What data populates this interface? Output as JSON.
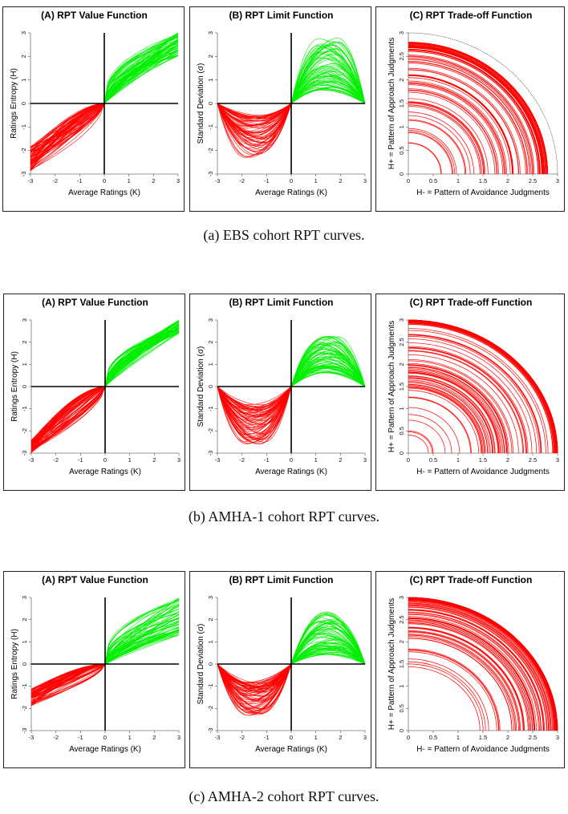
{
  "figures": [
    {
      "caption": "(a) EBS cohort RPT curves.",
      "panels": [
        {
          "title": "(A) RPT Value Function",
          "xlabel": "Average Ratings (K)",
          "ylabel": "Ratings Entropy (H)"
        },
        {
          "title": "(B) RPT Limit Function",
          "xlabel": "Average Ratings (K)",
          "ylabel": "Standard Deviation (σ)"
        },
        {
          "title": "(C) RPT Trade-off Function",
          "xlabel": "H- = Pattern of Avoidance Judgments",
          "ylabel": "H+ = Pattern of Approach Judgments"
        }
      ]
    },
    {
      "caption": "(b) AMHA-1 cohort RPT curves.",
      "panels": [
        {
          "title": "(A) RPT Value Function",
          "xlabel": "Average Ratings (K)",
          "ylabel": "Ratings Entropy (H)"
        },
        {
          "title": "(B) RPT Limit Function",
          "xlabel": "Average Ratings (K)",
          "ylabel": "Standard Deviation (σ)"
        },
        {
          "title": "(C) RPT Trade-off Function",
          "xlabel": "H- = Pattern of Avoidance Judgments",
          "ylabel": "H+ = Pattern of Approach Judgments"
        }
      ]
    },
    {
      "caption": "(c) AMHA-2 cohort RPT curves.",
      "panels": [
        {
          "title": "(A) RPT Value Function",
          "xlabel": "Average Ratings (K)",
          "ylabel": "Ratings Entropy (H)"
        },
        {
          "title": "(B) RPT Limit Function",
          "xlabel": "Average Ratings (K)",
          "ylabel": "Standard Deviation (σ)"
        },
        {
          "title": "(C) RPT Trade-off Function",
          "xlabel": "H- = Pattern of Avoidance Judgments",
          "ylabel": "H+ = Pattern of Approach Judgments"
        }
      ]
    }
  ],
  "chart_data": [
    {
      "type": "line",
      "cohort": "EBS",
      "panel": "value",
      "x_ticks": [
        "-3",
        "-2",
        "-1",
        "0",
        "1",
        "2",
        "3"
      ],
      "y_ticks": [
        "-3",
        "-2",
        "-1",
        "0",
        "1",
        "2",
        "3"
      ],
      "xlim": [
        -3,
        3
      ],
      "ylim": [
        -3,
        3
      ],
      "neg_color": "#ff0000",
      "pos_color": "#00ee00",
      "neg_curve_range": {
        "x": [
          -3,
          0
        ],
        "y_at_-3": [
          -2.9,
          -1.8
        ]
      },
      "pos_curve_range": {
        "x": [
          0,
          3
        ],
        "y_at_3": [
          2.0,
          3.0
        ]
      }
    },
    {
      "type": "line",
      "cohort": "EBS",
      "panel": "limit",
      "x_ticks": [
        "-3",
        "-2",
        "-1",
        "0",
        "1",
        "2",
        "3"
      ],
      "y_ticks": [
        "-3",
        "-2",
        "-1",
        "0",
        "1",
        "2",
        "3"
      ],
      "xlim": [
        -3,
        3
      ],
      "ylim": [
        -3,
        3
      ],
      "neg_color": "#ff0000",
      "pos_color": "#00ee00",
      "neg_trough_depth": [
        -0.5,
        -2.3
      ],
      "pos_peak_height": [
        0.5,
        2.8
      ]
    },
    {
      "type": "arc",
      "cohort": "EBS",
      "panel": "tradeoff",
      "x_ticks": [
        "0",
        "0.5",
        "1",
        "1.5",
        "2",
        "2.5",
        "3"
      ],
      "y_ticks": [
        "0",
        "0.5",
        "1",
        "1.5",
        "2",
        "2.5",
        "3"
      ],
      "xlim": [
        0,
        3
      ],
      "ylim": [
        0,
        3
      ],
      "color": "#ff0000",
      "radius_range": [
        0.5,
        2.8
      ],
      "outer_arc_radius": 3.0
    },
    {
      "type": "line",
      "cohort": "AMHA-1",
      "panel": "value",
      "x_ticks": [
        "-3",
        "-2",
        "-1",
        "0",
        "1",
        "2",
        "3"
      ],
      "y_ticks": [
        "-3",
        "-2",
        "-1",
        "0",
        "1",
        "2",
        "3"
      ],
      "xlim": [
        -3,
        3
      ],
      "ylim": [
        -3,
        3
      ],
      "neg_color": "#ff0000",
      "pos_color": "#00ee00",
      "neg_curve_range": {
        "x": [
          -3,
          0
        ],
        "y_at_-3": [
          -3.0,
          -2.4
        ]
      },
      "pos_curve_range": {
        "x": [
          0,
          3
        ],
        "y_at_3": [
          2.4,
          3.0
        ]
      }
    },
    {
      "type": "line",
      "cohort": "AMHA-1",
      "panel": "limit",
      "x_ticks": [
        "-3",
        "-2",
        "-1",
        "0",
        "1",
        "2",
        "3"
      ],
      "y_ticks": [
        "-3",
        "-2",
        "-1",
        "0",
        "1",
        "2",
        "3"
      ],
      "xlim": [
        -3,
        3
      ],
      "ylim": [
        -3,
        3
      ],
      "neg_color": "#ff0000",
      "pos_color": "#00ee00",
      "neg_trough_depth": [
        -0.8,
        -2.6
      ],
      "pos_peak_height": [
        0.6,
        2.3
      ]
    },
    {
      "type": "arc",
      "cohort": "AMHA-1",
      "panel": "tradeoff",
      "x_ticks": [
        "0",
        "0.5",
        "1",
        "1.5",
        "2",
        "2.5",
        "3"
      ],
      "y_ticks": [
        "0",
        "0.5",
        "1",
        "1.5",
        "2",
        "2.5",
        "3"
      ],
      "xlim": [
        0,
        3
      ],
      "ylim": [
        0,
        3
      ],
      "color": "#ff0000",
      "radius_range": [
        0.3,
        3.0
      ]
    },
    {
      "type": "line",
      "cohort": "AMHA-2",
      "panel": "value",
      "x_ticks": [
        "-3",
        "-2",
        "-1",
        "0",
        "1",
        "2",
        "3"
      ],
      "y_ticks": [
        "-3",
        "-2",
        "-1",
        "0",
        "1",
        "2",
        "3"
      ],
      "xlim": [
        -3,
        3
      ],
      "ylim": [
        -3,
        3
      ],
      "neg_color": "#ff0000",
      "pos_color": "#00ee00",
      "neg_curve_range": {
        "x": [
          -3,
          0
        ],
        "y_at_-3": [
          -1.9,
          -1.1
        ]
      },
      "pos_curve_range": {
        "x": [
          0,
          3
        ],
        "y_at_3": [
          1.3,
          3.0
        ]
      }
    },
    {
      "type": "line",
      "cohort": "AMHA-2",
      "panel": "limit",
      "x_ticks": [
        "-3",
        "-2",
        "-1",
        "0",
        "1",
        "2",
        "3"
      ],
      "y_ticks": [
        "-3",
        "-2",
        "-1",
        "0",
        "1",
        "2",
        "3"
      ],
      "xlim": [
        -3,
        3
      ],
      "ylim": [
        -3,
        3
      ],
      "neg_color": "#ff0000",
      "pos_color": "#00ee00",
      "neg_trough_depth": [
        -0.8,
        -2.4
      ],
      "pos_peak_height": [
        0.4,
        2.4
      ]
    },
    {
      "type": "arc",
      "cohort": "AMHA-2",
      "panel": "tradeoff",
      "x_ticks": [
        "0",
        "0.5",
        "1",
        "1.5",
        "2",
        "2.5",
        "3"
      ],
      "y_ticks": [
        "0",
        "0.5",
        "1",
        "1.5",
        "2",
        "2.5",
        "3"
      ],
      "xlim": [
        0,
        3
      ],
      "ylim": [
        0,
        3
      ],
      "color": "#ff0000",
      "radius_range": [
        1.4,
        3.0
      ]
    }
  ]
}
